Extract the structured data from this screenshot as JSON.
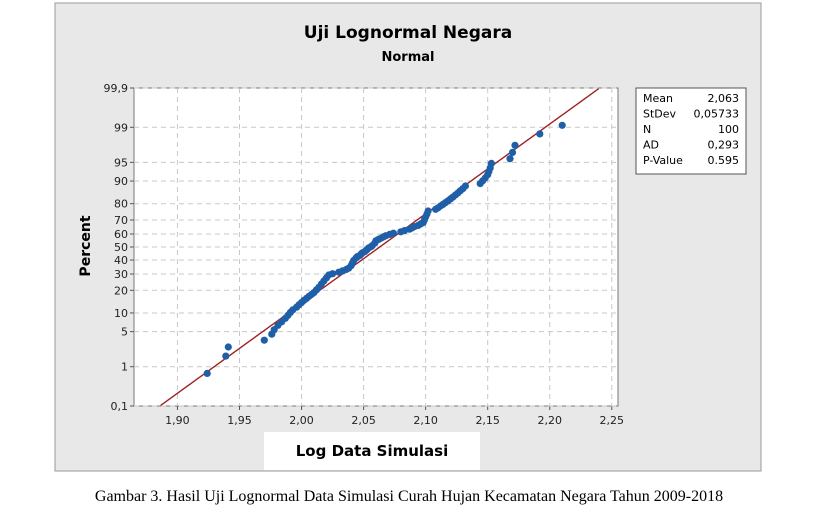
{
  "chart_data": {
    "type": "scatter",
    "subtype": "probability-plot",
    "title": "Uji Lognormal Negara",
    "subtitle": "Normal",
    "xlabel": "Log Data Simulasi",
    "ylabel": "Percent",
    "xlim": [
      1.865,
      2.255
    ],
    "ylim_percent": [
      0.1,
      99.9
    ],
    "yscale": "normal-probability",
    "grid": true,
    "x_ticks": [
      1.9,
      1.95,
      2.0,
      2.05,
      2.1,
      2.15,
      2.2,
      2.25
    ],
    "x_tick_labels": [
      "1,90",
      "1,95",
      "2,00",
      "2,05",
      "2,10",
      "2,15",
      "2,20",
      "2,25"
    ],
    "y_ticks": [
      0.1,
      1,
      5,
      10,
      20,
      30,
      40,
      50,
      60,
      70,
      80,
      90,
      95,
      99,
      99.9
    ],
    "y_tick_labels": [
      "0,1",
      "1",
      "5",
      "10",
      "20",
      "30",
      "40",
      "50",
      "60",
      "70",
      "80",
      "90",
      "95",
      "99",
      "99,9"
    ],
    "fit_line": {
      "mean": 2.063,
      "stdev": 0.05733
    },
    "points": {
      "x": [
        1.924,
        1.939,
        1.941,
        1.97,
        1.976,
        1.978,
        1.981,
        1.984,
        1.987,
        1.989,
        1.991,
        1.993,
        1.996,
        1.998,
        2.0,
        2.002,
        2.004,
        2.006,
        2.008,
        2.01,
        2.012,
        2.014,
        2.016,
        2.018,
        2.02,
        2.022,
        2.025,
        2.03,
        2.033,
        2.036,
        2.038,
        2.04,
        2.041,
        2.042,
        2.044,
        2.045,
        2.047,
        2.048,
        2.049,
        2.051,
        2.052,
        2.053,
        2.054,
        2.056,
        2.057,
        2.059,
        2.06,
        2.062,
        2.064,
        2.066,
        2.068,
        2.071,
        2.074,
        2.08,
        2.083,
        2.087,
        2.089,
        2.091,
        2.094,
        2.096,
        2.098,
        2.099,
        2.1,
        2.101,
        2.102,
        2.108,
        2.11,
        2.112,
        2.114,
        2.116,
        2.118,
        2.12,
        2.122,
        2.124,
        2.126,
        2.128,
        2.13,
        2.132,
        2.144,
        2.146,
        2.148,
        2.15,
        2.151,
        2.152,
        2.153,
        2.168,
        2.17,
        2.172,
        2.192,
        2.21
      ],
      "p": [
        0.7,
        1.7,
        2.6,
        3.5,
        4.5,
        5.4,
        6.4,
        7.3,
        8.3,
        9.2,
        10.2,
        11.1,
        12.1,
        13.1,
        14.0,
        15.0,
        15.9,
        16.9,
        17.8,
        18.8,
        20.2,
        21.7,
        23.6,
        25.5,
        27.4,
        29.3,
        30.2,
        31.2,
        32.1,
        33.1,
        34.0,
        35.9,
        37.8,
        39.7,
        41.6,
        42.6,
        43.5,
        44.5,
        45.4,
        46.4,
        47.3,
        48.3,
        49.2,
        50.2,
        51.1,
        53.0,
        54.9,
        55.9,
        56.8,
        57.8,
        58.7,
        59.7,
        60.6,
        61.6,
        62.5,
        63.5,
        64.4,
        65.4,
        66.3,
        67.3,
        68.2,
        70.1,
        72.0,
        73.9,
        75.8,
        76.8,
        77.7,
        78.7,
        79.6,
        80.6,
        81.5,
        82.5,
        83.4,
        84.4,
        85.3,
        86.3,
        87.2,
        88.2,
        89.1,
        90.1,
        91.0,
        92.0,
        92.9,
        93.8,
        94.8,
        95.7,
        96.7,
        97.6,
        98.6,
        99.1
      ]
    },
    "legend_position": "right",
    "stats": [
      {
        "label": "Mean",
        "value": "2,063"
      },
      {
        "label": "StDev",
        "value": "0,05733"
      },
      {
        "label": "N",
        "value": "100"
      },
      {
        "label": "AD",
        "value": "0,293"
      },
      {
        "label": "P-Value",
        "value": "0.595"
      }
    ],
    "colors": {
      "point": "#1f5fa8",
      "fit_line": "#a02020",
      "panel": "#e8e8e8",
      "plot_bg": "#ffffff",
      "grid": "#c8c8c8"
    }
  },
  "caption": "Gambar 3. Hasil Uji Lognormal Data Simulasi Curah Hujan Kecamatan Negara Tahun 2009-2018"
}
